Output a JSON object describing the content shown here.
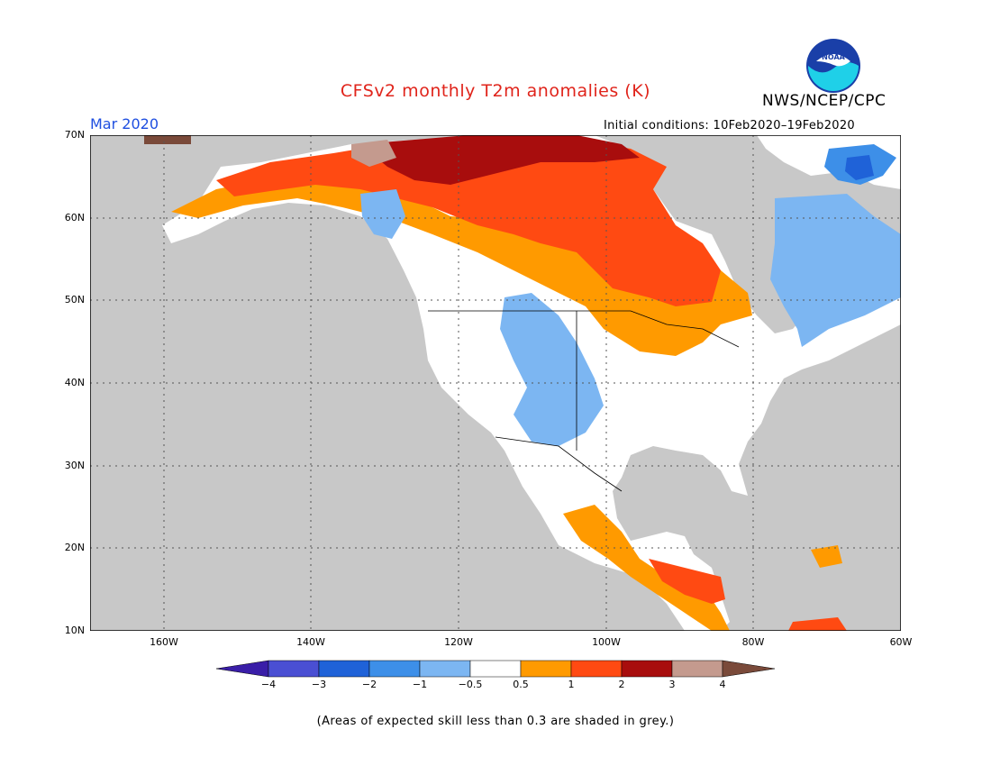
{
  "header": {
    "title": "CFSv2 monthly T2m anomalies (K)",
    "agency": "NWS/NCEP/CPC",
    "month": "Mar 2020",
    "initial_conditions": "Initial conditions: 10Feb2020–19Feb2020",
    "logo_text": "NOAA"
  },
  "map": {
    "region": "North America",
    "lat_range": [
      10,
      70
    ],
    "lon_range": [
      -170,
      -60
    ],
    "lat_labels": [
      "70N",
      "60N",
      "50N",
      "40N",
      "30N",
      "20N",
      "10N"
    ],
    "lon_labels": [
      "160W",
      "140W",
      "120W",
      "100W",
      "80W",
      "60W"
    ],
    "ocean_color": "#c8c8c8",
    "land_color": "#ffffff"
  },
  "colorbar": {
    "tick_labels": [
      "−4",
      "−3",
      "−2",
      "−1",
      "−0.5",
      "0.5",
      "1",
      "2",
      "3",
      "4"
    ],
    "colors": [
      "#3a1ea8",
      "#4a4fd3",
      "#1f62d8",
      "#3d8fe8",
      "#7cb6f2",
      "#ffffff",
      "#ff9a00",
      "#ff4a12",
      "#a80d0d",
      "#c49a8e",
      "#7a4a3a"
    ]
  },
  "footnote": "(Areas of expected skill less than 0.3 are shaded in grey.)"
}
